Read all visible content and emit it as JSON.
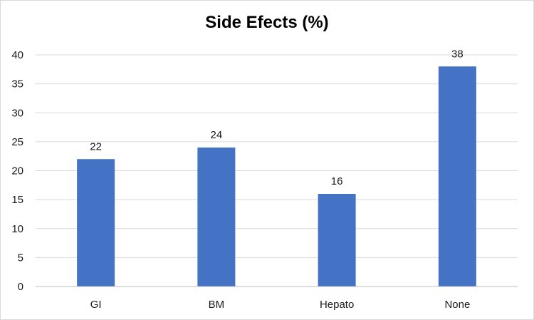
{
  "chart_data": {
    "type": "bar",
    "title": "Side Efects (%)",
    "categories": [
      "GI",
      "BM",
      "Hepato",
      "None"
    ],
    "values": [
      22,
      24,
      16,
      38
    ],
    "data_labels": [
      "22",
      "24",
      "16",
      "38"
    ],
    "ylim": [
      0,
      40
    ],
    "yticks": [
      0,
      5,
      10,
      15,
      20,
      25,
      30,
      35,
      40
    ],
    "xlabel": "",
    "ylabel": "",
    "grid": true,
    "legend": "none",
    "bar_color": "#4472c4",
    "grid_color": "#d9d9d9"
  }
}
